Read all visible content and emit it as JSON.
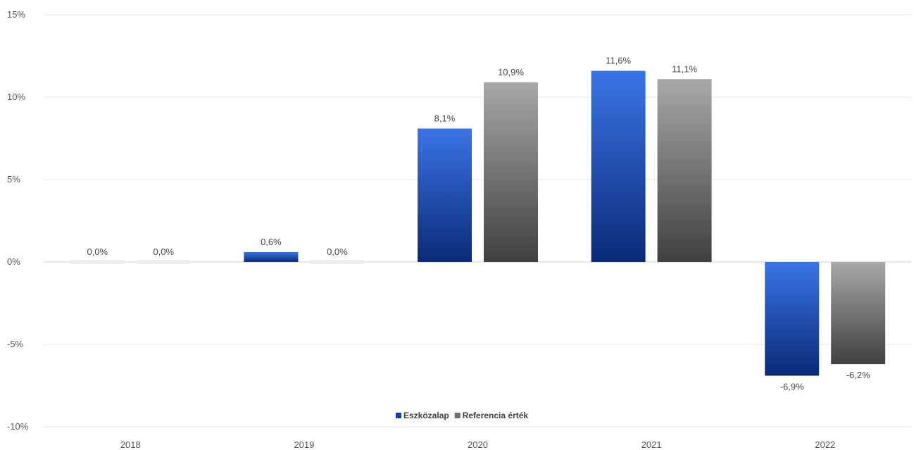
{
  "chart_data": {
    "type": "bar",
    "categories": [
      "2018",
      "2019",
      "2020",
      "2021",
      "2022"
    ],
    "series": [
      {
        "name": "Eszközalap",
        "values": [
          0.0,
          0.6,
          8.1,
          11.6,
          -6.9
        ],
        "labels": [
          "0,0%",
          "0,6%",
          "8,1%",
          "11,6%",
          "-6,9%"
        ],
        "color": "#1f4fcf"
      },
      {
        "name": "Referencia érték",
        "values": [
          0.0,
          0.0,
          10.9,
          11.1,
          -6.2
        ],
        "labels": [
          "0,0%",
          "0,0%",
          "10,9%",
          "11,1%",
          "-6,2%"
        ],
        "color": "#7a7a7a"
      }
    ],
    "yticks": [
      15,
      10,
      5,
      0,
      -5,
      -10
    ],
    "yticklabels": [
      "15%",
      "10%",
      "5%",
      "0%",
      "-5%",
      "-10%"
    ],
    "ylim": [
      -10,
      15
    ],
    "grid": true,
    "legend_position": "bottom"
  }
}
